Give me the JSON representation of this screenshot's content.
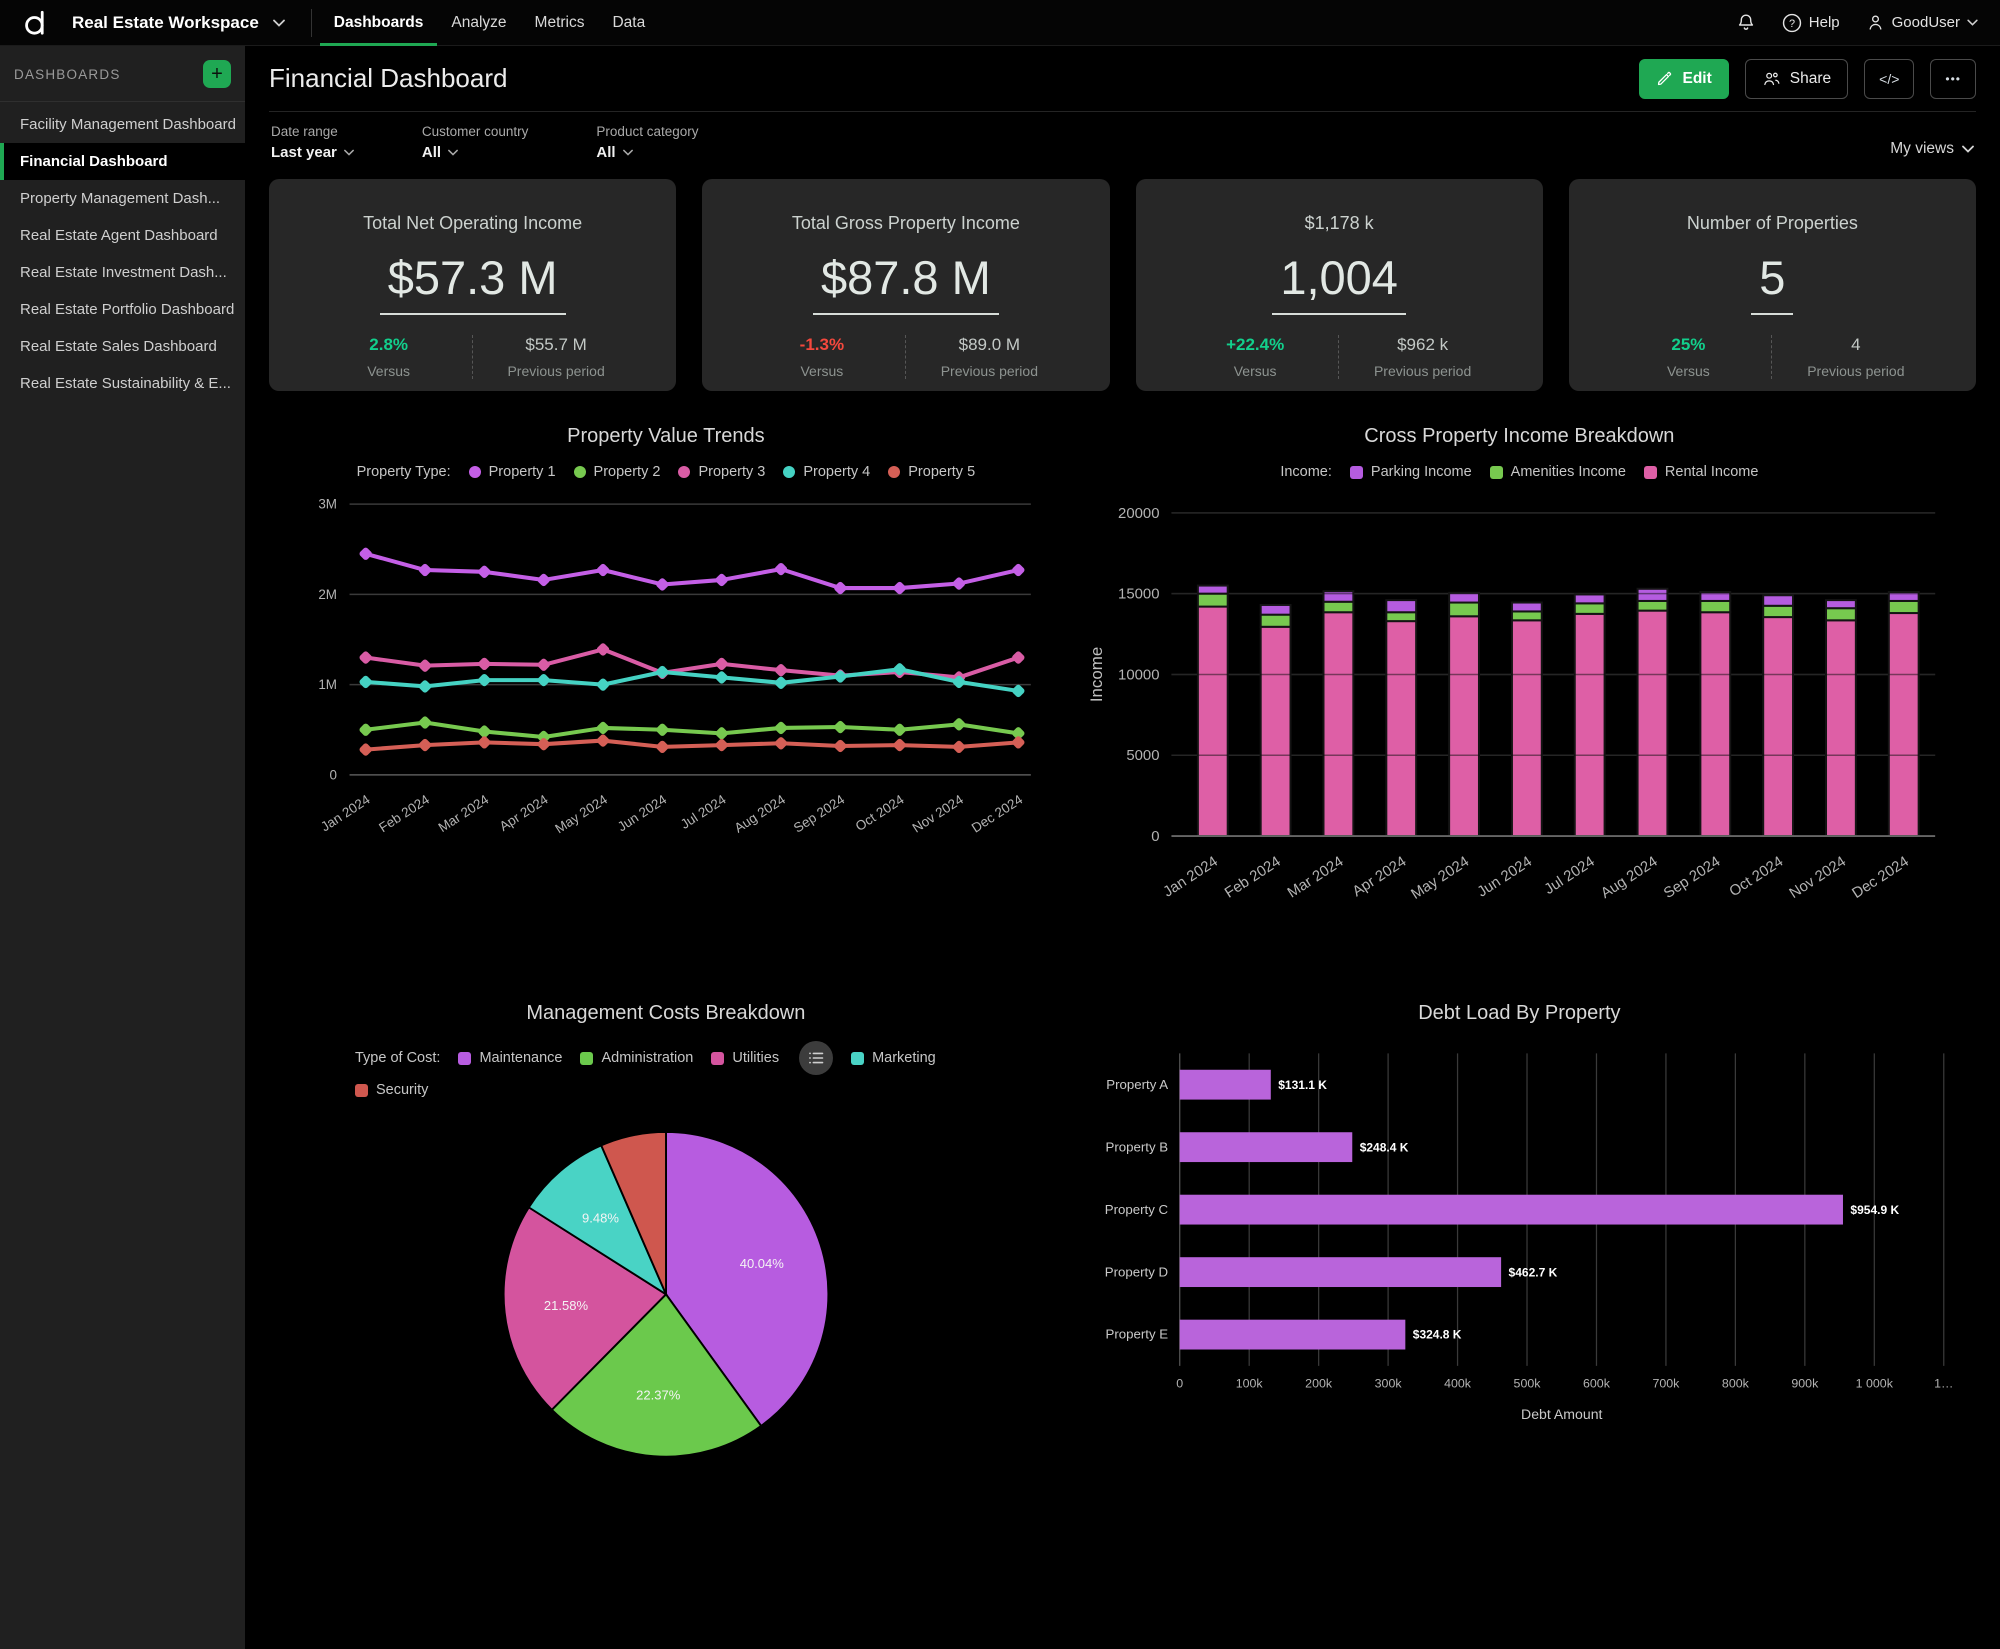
{
  "topbar": {
    "workspace": "Real Estate Workspace",
    "tabs": [
      {
        "label": "Dashboards"
      },
      {
        "label": "Analyze"
      },
      {
        "label": "Metrics"
      },
      {
        "label": "Data"
      }
    ],
    "active_tab": "Dashboards",
    "help_label": "Help",
    "user_name": "GoodUser"
  },
  "sidebar": {
    "title": "DASHBOARDS",
    "items": [
      {
        "label": "Facility Management Dashboard"
      },
      {
        "label": "Financial Dashboard"
      },
      {
        "label": "Property Management Dash..."
      },
      {
        "label": "Real Estate Agent Dashboard"
      },
      {
        "label": "Real Estate Investment Dash..."
      },
      {
        "label": "Real Estate Portfolio Dashboard"
      },
      {
        "label": "Real Estate Sales Dashboard"
      },
      {
        "label": "Real Estate Sustainability & E..."
      }
    ],
    "active_item": "Financial Dashboard"
  },
  "header": {
    "title": "Financial Dashboard",
    "edit_label": "Edit",
    "share_label": "Share",
    "code_label": "</>",
    "more_label": "•••"
  },
  "filters": {
    "groups": [
      {
        "label": "Date range",
        "value": "Last year"
      },
      {
        "label": "Customer country",
        "value": "All"
      },
      {
        "label": "Product category",
        "value": "All"
      }
    ],
    "views_label": "My views"
  },
  "kpis": [
    {
      "title": "Total Net Operating Income",
      "value": "$57.3 M",
      "delta": "2.8%",
      "delta_color": "#12cf8c",
      "versus_label": "Versus",
      "prev": "$55.7 M",
      "prev_label": "Previous period"
    },
    {
      "title": "Total Gross Property Income",
      "value": "$87.8 M",
      "delta": "-1.3%",
      "delta_color": "#f4483d",
      "versus_label": "Versus",
      "prev": "$89.0 M",
      "prev_label": "Previous period"
    },
    {
      "title": "$1,178 k",
      "value": "1,004",
      "delta": "+22.4%",
      "delta_color": "#12cf8c",
      "versus_label": "Versus",
      "prev": "$962 k",
      "prev_label": "Previous period"
    },
    {
      "title": "Number of Properties",
      "value": "5",
      "delta": "25%",
      "delta_color": "#12cf8c",
      "versus_label": "Versus",
      "prev": "4",
      "prev_label": "Previous period"
    }
  ],
  "chart_data": [
    {
      "type": "line",
      "title": "Property Value Trends",
      "legend_title": "Property Type:",
      "x": [
        "Jan 2024",
        "Feb 2024",
        "Mar 2024",
        "Apr 2024",
        "May 2024",
        "Jun 2024",
        "Jul 2024",
        "Aug 2024",
        "Sep 2024",
        "Oct 2024",
        "Nov 2024",
        "Dec 2024"
      ],
      "ylim": [
        0,
        3000000
      ],
      "yticks": [
        {
          "v": 0,
          "label": "0"
        },
        {
          "v": 1000000,
          "label": "1M"
        },
        {
          "v": 2000000,
          "label": "2M"
        },
        {
          "v": 3000000,
          "label": "3M"
        }
      ],
      "series": [
        {
          "name": "Property 1",
          "color": "#c45fe6",
          "values": [
            2450000,
            2270000,
            2250000,
            2160000,
            2270000,
            2110000,
            2160000,
            2280000,
            2070000,
            2070000,
            2120000,
            2270000
          ]
        },
        {
          "name": "Property 2",
          "color": "#77c94f",
          "values": [
            500000,
            580000,
            480000,
            420000,
            520000,
            500000,
            460000,
            520000,
            530000,
            500000,
            560000,
            460000
          ]
        },
        {
          "name": "Property 3",
          "color": "#d95ca5",
          "values": [
            1300000,
            1210000,
            1230000,
            1220000,
            1390000,
            1130000,
            1230000,
            1160000,
            1100000,
            1140000,
            1080000,
            1300000
          ]
        },
        {
          "name": "Property 4",
          "color": "#45d2c3",
          "values": [
            1030000,
            980000,
            1050000,
            1050000,
            1000000,
            1140000,
            1080000,
            1020000,
            1090000,
            1170000,
            1030000,
            930000
          ]
        },
        {
          "name": "Property 5",
          "color": "#d55f56",
          "values": [
            280000,
            330000,
            360000,
            340000,
            380000,
            310000,
            330000,
            350000,
            320000,
            330000,
            310000,
            360000
          ]
        }
      ]
    },
    {
      "type": "stacked-bar",
      "title": "Cross Property Income Breakdown",
      "legend_title": "Income:",
      "ylabel": "Income",
      "x": [
        "Jan 2024",
        "Feb 2024",
        "Mar 2024",
        "Apr 2024",
        "May 2024",
        "Jun 2024",
        "Jul 2024",
        "Aug 2024",
        "Sep 2024",
        "Oct 2024",
        "Nov 2024",
        "Dec 2024"
      ],
      "ylim": [
        0,
        20000
      ],
      "yticks": [
        {
          "v": 0,
          "label": "0"
        },
        {
          "v": 5000,
          "label": "5000"
        },
        {
          "v": 10000,
          "label": "10000"
        },
        {
          "v": 15000,
          "label": "15000"
        },
        {
          "v": 20000,
          "label": "20000"
        }
      ],
      "legend": [
        {
          "label": "Parking Income",
          "color": "#b55ce0"
        },
        {
          "label": "Amenities Income",
          "color": "#77c94f"
        },
        {
          "label": "Rental Income",
          "color": "#de5fa6"
        }
      ],
      "series": [
        {
          "name": "Rental Income",
          "color": "#de5fa6",
          "values": [
            14200,
            12950,
            13850,
            13300,
            13600,
            13350,
            13750,
            13950,
            13850,
            13550,
            13350,
            13800
          ]
        },
        {
          "name": "Amenities Income",
          "color": "#77c94f",
          "values": [
            800,
            750,
            650,
            550,
            850,
            550,
            650,
            600,
            700,
            700,
            750,
            750
          ]
        },
        {
          "name": "Parking Income",
          "color": "#b55ce0",
          "values": [
            500,
            600,
            650,
            750,
            600,
            550,
            550,
            750,
            550,
            650,
            500,
            550
          ]
        }
      ]
    },
    {
      "type": "pie",
      "title": "Management Costs Breakdown",
      "legend_title": "Type of Cost:",
      "slices": [
        {
          "label": "Maintenance",
          "color": "#b75ce0",
          "pct": 40.04,
          "show_label": true
        },
        {
          "label": "Administration",
          "color": "#6bc94c",
          "pct": 22.37,
          "show_label": true
        },
        {
          "label": "Utilities",
          "color": "#d4549e",
          "pct": 21.58,
          "show_label": true
        },
        {
          "label": "Marketing",
          "color": "#49d3c5",
          "pct": 9.48,
          "show_label": true
        },
        {
          "label": "Security",
          "color": "#cf574e",
          "pct": 6.53,
          "show_label": false
        }
      ]
    },
    {
      "type": "hbar",
      "title": "Debt Load By Property",
      "xlabel": "Debt Amount",
      "color": "#b964db",
      "categories": [
        "Property A",
        "Property B",
        "Property C",
        "Property D",
        "Property E"
      ],
      "values_k": [
        131.1,
        248.4,
        954.9,
        462.7,
        324.8
      ],
      "bar_labels": [
        "$131.1 K",
        "$248.4 K",
        "$954.9 K",
        "$462.7 K",
        "$324.8 K"
      ],
      "xlim_k": [
        0,
        1100
      ],
      "xticks": [
        {
          "v": 0,
          "label": "0"
        },
        {
          "v": 100,
          "label": "100k"
        },
        {
          "v": 200,
          "label": "200k"
        },
        {
          "v": 300,
          "label": "300k"
        },
        {
          "v": 400,
          "label": "400k"
        },
        {
          "v": 500,
          "label": "500k"
        },
        {
          "v": 600,
          "label": "600k"
        },
        {
          "v": 700,
          "label": "700k"
        },
        {
          "v": 800,
          "label": "800k"
        },
        {
          "v": 900,
          "label": "900k"
        },
        {
          "v": 1000,
          "label": "1 000k"
        },
        {
          "v": 1100,
          "label": "1…"
        }
      ]
    }
  ]
}
